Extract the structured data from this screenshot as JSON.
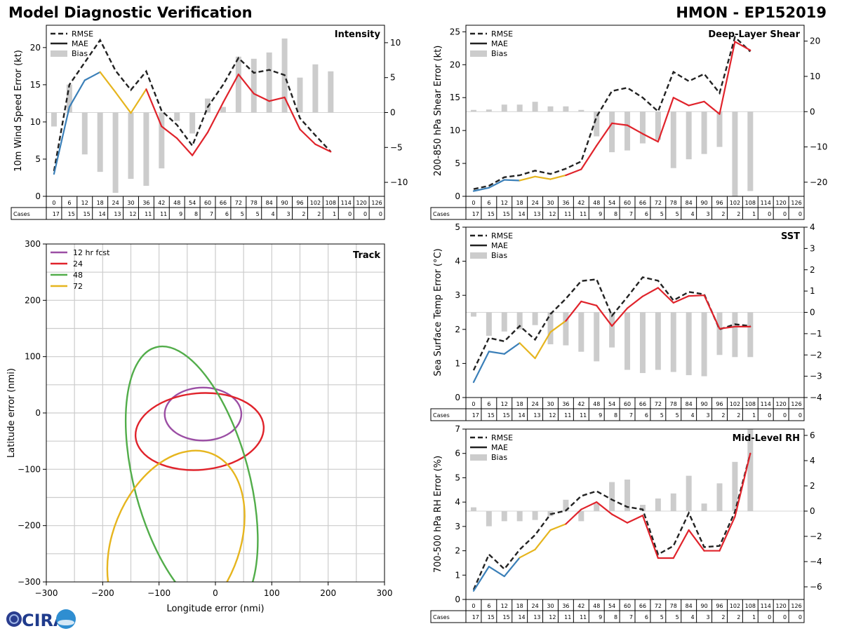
{
  "header": {
    "title": "Model Diagnostic Verification",
    "model_storm": "HMON - EP152019"
  },
  "logo": {
    "text": "CIRA"
  },
  "colors": {
    "rmse": "#222222",
    "mae_blue": "#3a7fb8",
    "mae_yellow": "#e6b51e",
    "mae_red": "#e0232b",
    "bias": "#cccccc",
    "grid": "#cccccc",
    "track_12": "#9b4ea4",
    "track_24": "#e0232b",
    "track_48": "#52ad4a",
    "track_72": "#e6b51e"
  },
  "lead_times": [
    "0",
    "6",
    "12",
    "18",
    "24",
    "30",
    "36",
    "42",
    "48",
    "54",
    "60",
    "66",
    "72",
    "78",
    "84",
    "90",
    "96",
    "102",
    "108",
    "114",
    "120",
    "126"
  ],
  "cases": {
    "label": "Cases",
    "values": [
      "17",
      "15",
      "15",
      "14",
      "13",
      "12",
      "11",
      "11",
      "9",
      "8",
      "7",
      "6",
      "5",
      "5",
      "4",
      "3",
      "2",
      "2",
      "1",
      "0",
      "0",
      "0"
    ]
  },
  "legend": {
    "rmse": "RMSE",
    "mae": "MAE",
    "bias": "Bias"
  },
  "chart_data": [
    {
      "id": "intensity",
      "type": "line",
      "title": "Intensity",
      "ylabel": "10m Wind Speed Error (kt)",
      "ylim": [
        0,
        23
      ],
      "yticks": [
        0,
        5,
        10,
        15,
        20
      ],
      "y2lim": [
        -12,
        12.5
      ],
      "y2ticks": [
        -10,
        -5,
        0,
        5,
        10
      ],
      "rmse": [
        3.4,
        15.0,
        18.0,
        21.0,
        16.9,
        14.3,
        16.8,
        11.5,
        9.6,
        6.8,
        12.0,
        15.0,
        18.6,
        16.6,
        17.0,
        16.3,
        10.5,
        8.2,
        6.0,
        null,
        null,
        null
      ],
      "mae": [
        3.0,
        12.0,
        15.6,
        16.7,
        14.0,
        11.2,
        14.4,
        9.4,
        7.8,
        5.5,
        8.6,
        12.6,
        16.4,
        13.8,
        12.8,
        13.3,
        9.0,
        7.0,
        6.0,
        null,
        null,
        null
      ],
      "bias": [
        -2.0,
        4.0,
        -6.0,
        -8.5,
        -11.5,
        -9.5,
        -10.5,
        -8.0,
        -1.2,
        -3.0,
        2.0,
        0.8,
        8.0,
        7.7,
        8.6,
        10.6,
        5.0,
        6.9,
        5.9,
        null,
        null,
        null
      ]
    },
    {
      "id": "shear",
      "type": "line",
      "title": "Deep-Layer Shear",
      "ylabel": "200-850 hPa Shear Error (kt)",
      "ylim": [
        0,
        26
      ],
      "yticks": [
        0,
        5,
        10,
        15,
        20,
        25
      ],
      "y2lim": [
        -24,
        24.5
      ],
      "y2ticks": [
        -20,
        -10,
        0,
        10,
        20
      ],
      "rmse": [
        1.1,
        1.6,
        2.9,
        3.2,
        3.9,
        3.4,
        4.2,
        5.3,
        12.1,
        16.0,
        16.5,
        15.0,
        12.9,
        18.9,
        17.5,
        18.6,
        15.7,
        24.2,
        22.0,
        null,
        null,
        null
      ],
      "mae": [
        0.8,
        1.3,
        2.5,
        2.4,
        3.0,
        2.6,
        3.2,
        4.1,
        7.7,
        11.1,
        10.8,
        9.5,
        8.3,
        15.0,
        13.8,
        14.4,
        12.5,
        23.5,
        22.2,
        null,
        null,
        null
      ],
      "bias": [
        0.5,
        0.6,
        2.0,
        2.0,
        2.8,
        1.5,
        1.5,
        0.5,
        -7.0,
        -11.5,
        -11.0,
        -9.0,
        -8.0,
        -16.0,
        -13.5,
        -12.0,
        -10.0,
        -24.0,
        -22.5,
        null,
        null,
        null
      ]
    },
    {
      "id": "sst",
      "type": "line",
      "title": "SST",
      "ylabel": "Sea Surface Temp Error (°C)",
      "ylim": [
        0,
        5
      ],
      "yticks": [
        0,
        1,
        2,
        3,
        4,
        5
      ],
      "y2lim": [
        -4,
        4
      ],
      "y2ticks": [
        -4,
        -3,
        -2,
        -1,
        0,
        1,
        2,
        3,
        4
      ],
      "rmse": [
        0.8,
        1.75,
        1.65,
        2.1,
        1.7,
        2.45,
        2.9,
        3.42,
        3.47,
        2.4,
        2.95,
        3.53,
        3.43,
        2.85,
        3.1,
        3.03,
        2.0,
        2.15,
        2.1,
        null,
        null,
        null
      ],
      "mae": [
        0.45,
        1.35,
        1.28,
        1.6,
        1.15,
        1.92,
        2.25,
        2.82,
        2.7,
        2.1,
        2.62,
        2.97,
        3.22,
        2.78,
        2.98,
        3.0,
        2.02,
        2.08,
        2.08,
        null,
        null,
        null
      ],
      "bias": [
        -0.2,
        -1.1,
        -0.9,
        -0.8,
        -0.6,
        -1.5,
        -1.55,
        -1.85,
        -2.3,
        -1.65,
        -2.7,
        -2.85,
        -2.7,
        -2.8,
        -2.95,
        -3.0,
        -2.0,
        -2.1,
        -2.1,
        null,
        null,
        null
      ]
    },
    {
      "id": "rh",
      "type": "line",
      "title": "Mid-Level RH",
      "ylabel": "700-500 hPa RH Error (%)",
      "ylim": [
        0,
        7
      ],
      "yticks": [
        0,
        1,
        2,
        3,
        4,
        5,
        6,
        7
      ],
      "y2lim": [
        -7,
        6.5
      ],
      "y2ticks": [
        -6,
        -4,
        -2,
        0,
        2,
        4,
        6
      ],
      "rmse": [
        0.4,
        1.85,
        1.25,
        2.05,
        2.65,
        3.5,
        3.65,
        4.25,
        4.45,
        4.1,
        3.8,
        3.7,
        1.85,
        2.2,
        3.55,
        2.15,
        2.2,
        3.6,
        6.0,
        null,
        null,
        null
      ],
      "mae": [
        0.35,
        1.35,
        0.95,
        1.72,
        2.05,
        2.85,
        3.1,
        3.7,
        4.0,
        3.5,
        3.15,
        3.45,
        1.7,
        1.7,
        2.85,
        2.0,
        2.0,
        3.4,
        6.0,
        null,
        null,
        null
      ],
      "bias": [
        0.3,
        -1.2,
        -0.8,
        -0.8,
        -0.7,
        -0.4,
        0.9,
        -0.8,
        0.6,
        2.3,
        2.5,
        0.5,
        1.0,
        1.4,
        2.8,
        0.6,
        2.2,
        3.9,
        6.5,
        null,
        null,
        null
      ]
    },
    {
      "id": "track",
      "type": "scatter",
      "title": "Track",
      "xlabel": "Longitude error (nmi)",
      "ylabel": "Latitude error (nmi)",
      "xlim": [
        -300,
        300
      ],
      "ylim": [
        -300,
        300
      ],
      "xticks": [
        -300,
        -200,
        -100,
        0,
        100,
        200,
        300
      ],
      "yticks": [
        -300,
        -200,
        -100,
        0,
        100,
        200,
        300
      ],
      "series": [
        {
          "name": "12 hr fcst",
          "color": "#9b4ea4",
          "cx": -22,
          "cy": -2,
          "rx": 68,
          "ry": 47,
          "angle": 0
        },
        {
          "name": "24",
          "color": "#e0232b",
          "cx": -28,
          "cy": -33,
          "rx": 114,
          "ry": 68,
          "angle": -5
        },
        {
          "name": "48",
          "color": "#52ad4a",
          "cx": -42,
          "cy": -120,
          "rx": 102,
          "ry": 245,
          "angle": -15
        },
        {
          "name": "72",
          "color": "#e6b51e",
          "cx": -70,
          "cy": -230,
          "rx": 112,
          "ry": 170,
          "angle": 22
        }
      ]
    }
  ]
}
